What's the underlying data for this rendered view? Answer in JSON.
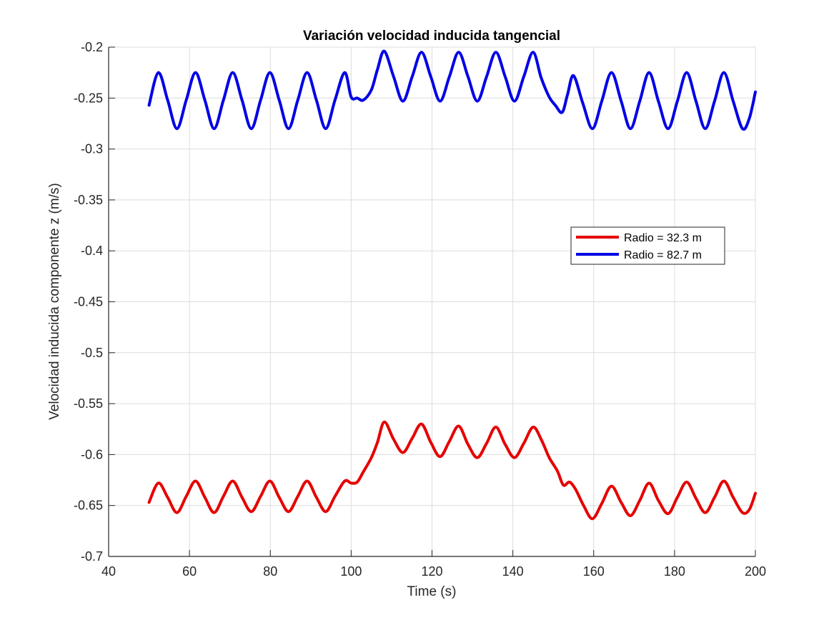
{
  "chart_data": {
    "type": "line",
    "title": "Variación velocidad inducida tangencial",
    "xlabel": "Time (s)",
    "ylabel": "Velocidad inducida componente z (m/s)",
    "xlim": [
      40,
      200
    ],
    "ylim": [
      -0.7,
      -0.2
    ],
    "xticks": [
      40,
      60,
      80,
      100,
      120,
      140,
      160,
      180,
      200
    ],
    "yticks": [
      -0.2,
      -0.25,
      -0.3,
      -0.35,
      -0.4,
      -0.45,
      -0.5,
      -0.55,
      -0.6,
      -0.65,
      -0.7
    ],
    "xtick_labels": [
      "40",
      "60",
      "80",
      "100",
      "120",
      "140",
      "160",
      "180",
      "200"
    ],
    "ytick_labels": [
      "-0.2",
      "-0.25",
      "-0.3",
      "-0.35",
      "-0.4",
      "-0.45",
      "-0.5",
      "-0.55",
      "-0.6",
      "-0.65",
      "-0.7"
    ],
    "grid": true,
    "legend_position": "right, upper-middle",
    "series": [
      {
        "name": "Radio = 32.3 m",
        "color": "#e60000",
        "x": [
          50,
          52.3,
          54.6,
          56.9,
          59.2,
          61.5,
          63.8,
          66.1,
          68.4,
          70.7,
          73.0,
          75.3,
          77.6,
          79.9,
          82.2,
          84.5,
          86.8,
          89.1,
          91.4,
          93.7,
          96.0,
          98.4,
          100.0,
          101.5,
          103.0,
          105.0,
          106.5,
          108.2,
          110.5,
          112.8,
          115.1,
          117.4,
          119.7,
          122.0,
          124.3,
          126.6,
          128.9,
          131.2,
          133.5,
          135.8,
          138.1,
          140.4,
          142.7,
          145.0,
          147.0,
          149.0,
          151.0,
          152.5,
          154.0,
          155.5,
          157.5,
          159.7,
          162.0,
          164.4,
          166.8,
          169.1,
          171.4,
          173.7,
          176.0,
          178.4,
          180.7,
          183.0,
          185.3,
          187.6,
          189.9,
          192.2,
          194.5,
          196.8,
          198.5,
          200.0
        ],
        "y": [
          -0.647,
          -0.628,
          -0.642,
          -0.657,
          -0.641,
          -0.626,
          -0.642,
          -0.657,
          -0.641,
          -0.626,
          -0.642,
          -0.656,
          -0.641,
          -0.626,
          -0.642,
          -0.656,
          -0.641,
          -0.626,
          -0.642,
          -0.656,
          -0.641,
          -0.626,
          -0.628,
          -0.627,
          -0.617,
          -0.603,
          -0.588,
          -0.568,
          -0.585,
          -0.598,
          -0.584,
          -0.57,
          -0.588,
          -0.602,
          -0.587,
          -0.572,
          -0.59,
          -0.603,
          -0.589,
          -0.573,
          -0.59,
          -0.603,
          -0.589,
          -0.573,
          -0.585,
          -0.603,
          -0.616,
          -0.63,
          -0.627,
          -0.634,
          -0.65,
          -0.663,
          -0.648,
          -0.631,
          -0.647,
          -0.66,
          -0.645,
          -0.628,
          -0.645,
          -0.658,
          -0.642,
          -0.627,
          -0.643,
          -0.657,
          -0.642,
          -0.626,
          -0.642,
          -0.657,
          -0.654,
          -0.638
        ]
      },
      {
        "name": "Radio = 82.7 m",
        "color": "#0000e6",
        "x": [
          50,
          52.3,
          54.6,
          56.9,
          59.2,
          61.5,
          63.8,
          66.1,
          68.4,
          70.7,
          73.0,
          75.3,
          77.6,
          79.9,
          82.2,
          84.5,
          86.8,
          89.1,
          91.4,
          93.7,
          96.0,
          98.4,
          100.0,
          101.5,
          103.0,
          105.0,
          106.5,
          108.2,
          110.5,
          112.8,
          115.1,
          117.4,
          119.7,
          122.0,
          124.3,
          126.6,
          128.9,
          131.2,
          133.5,
          135.8,
          138.1,
          140.4,
          142.7,
          145.0,
          147.0,
          149.0,
          150.5,
          152.2,
          153.5,
          155.0,
          157.3,
          159.7,
          162.0,
          164.4,
          166.8,
          169.1,
          171.4,
          173.7,
          176.0,
          178.4,
          180.7,
          183.0,
          185.3,
          187.6,
          189.9,
          192.2,
          194.5,
          196.8,
          198.5,
          200.0
        ],
        "y": [
          -0.257,
          -0.225,
          -0.252,
          -0.28,
          -0.252,
          -0.225,
          -0.252,
          -0.28,
          -0.252,
          -0.225,
          -0.252,
          -0.28,
          -0.252,
          -0.225,
          -0.252,
          -0.28,
          -0.252,
          -0.225,
          -0.252,
          -0.28,
          -0.252,
          -0.225,
          -0.249,
          -0.25,
          -0.252,
          -0.242,
          -0.222,
          -0.204,
          -0.229,
          -0.253,
          -0.229,
          -0.205,
          -0.229,
          -0.253,
          -0.229,
          -0.205,
          -0.229,
          -0.253,
          -0.229,
          -0.205,
          -0.229,
          -0.253,
          -0.229,
          -0.205,
          -0.23,
          -0.249,
          -0.257,
          -0.264,
          -0.247,
          -0.228,
          -0.255,
          -0.28,
          -0.253,
          -0.225,
          -0.253,
          -0.28,
          -0.253,
          -0.225,
          -0.253,
          -0.28,
          -0.253,
          -0.225,
          -0.253,
          -0.28,
          -0.253,
          -0.225,
          -0.253,
          -0.28,
          -0.27,
          -0.244
        ]
      }
    ]
  },
  "colors": {
    "axis": "#262626",
    "grid": "#dcdcdc",
    "background": "#ffffff"
  }
}
